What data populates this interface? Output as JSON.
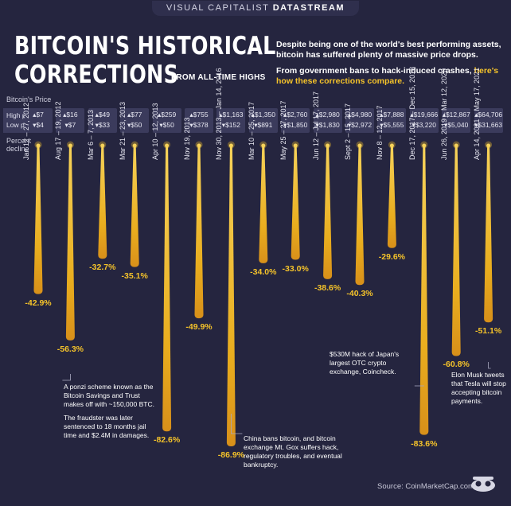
{
  "header": {
    "brand": "VISUAL CAPITALIST",
    "product": "DATASTREAM"
  },
  "title_line1": "BITCOIN'S HISTORICAL",
  "title_line2": "CORRECTIONS",
  "subtitle": "FROM ALL-TIME HIGHS",
  "intro": {
    "p1": "Despite being one of the world's best performing assets, bitcoin has suffered plenty of massive price drops.",
    "p2_plain": "From government bans to hack-induced crashes,",
    "p2_highlight": "here's how these corrections compare."
  },
  "labels": {
    "bitcoin_price": "Bitcoin's Price",
    "high_price": "High price",
    "low_price": "Low price",
    "percent_line1": "Percent",
    "percent_line2": "decline"
  },
  "notes": {
    "ponzi_p1": "A ponzi scheme known as the Bitcoin Savings and Trust makes off with ~150,000 BTC.",
    "ponzi_p2": "The fraudster was later sentenced to 18 months jail time and $2.4M in damages.",
    "china": "China bans bitcoin, and bitcoin exchange Mt. Gox suffers hack, regulatory troubles, and eventual bankruptcy.",
    "coincheck": "$530M hack of Japan's largest OTC crypto exchange, Coincheck.",
    "musk": "Elon Musk tweets that Tesla will stop accepting bitcoin payments."
  },
  "source": "Source: CoinMarketCap.com",
  "colors": {
    "background": "#25253f",
    "accent": "#f5c32a",
    "panel": "#3b3b5c"
  },
  "chart_data": {
    "type": "bar",
    "orientation": "vertical-downward",
    "ylabel": "Percent decline",
    "ylim": [
      -90,
      0
    ],
    "categories": [
      "Jan 12 – 27, 2012",
      "Aug 17 – 19, 2012",
      "Mar 6 – 7, 2013",
      "Mar 21 – 23, 2013",
      "Apr 10 – 12, 2013",
      "Nov 19, 2013",
      "Nov 30, 2013 – Jan 14, 2016",
      "Mar 10 – 25, 2017",
      "May 25 – 27, 2017",
      "Jun 12 – Jul 17, 2017",
      "Sept 2 – 15, 2017",
      "Nov 8 – 12, 2017",
      "Dec 17, 2017 – Dec 15, 2018",
      "Jun 26, 2019 – Mar 12, 2020",
      "Apr 14, 2021 – May 17, 2021"
    ],
    "values": [
      -42.9,
      -56.3,
      -32.7,
      -35.1,
      -82.6,
      -49.9,
      -86.9,
      -34.0,
      -33.0,
      -38.6,
      -40.3,
      -29.6,
      -83.6,
      -60.8,
      -51.1
    ],
    "value_labels": [
      "-42.9%",
      "-56.3%",
      "-32.7%",
      "-35.1%",
      "-82.6%",
      "-49.9%",
      "-86.9%",
      "-34.0%",
      "-33.0%",
      "-38.6%",
      "-40.3%",
      "-29.6%",
      "-83.6%",
      "-60.8%",
      "-51.1%"
    ],
    "high_price": [
      "$7",
      "$16",
      "$49",
      "$77",
      "$259",
      "$755",
      "$1,163",
      "$1,350",
      "$2,760",
      "$2,980",
      "$4,980",
      "$7,888",
      "$19,666",
      "$12,867",
      "$64,706"
    ],
    "low_price": [
      "$4",
      "$7",
      "$33",
      "$50",
      "$50",
      "$378",
      "$152",
      "$891",
      "$1,850",
      "$1,830",
      "$2,972",
      "$5,555",
      "$3,220",
      "$5,040",
      "$31,663"
    ]
  }
}
